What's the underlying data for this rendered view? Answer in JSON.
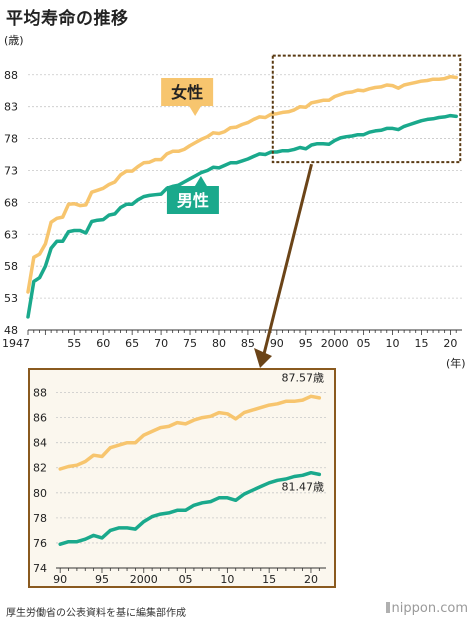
{
  "title": "平均寿命の推移",
  "source": "厚生労働省の公表資料を基に編集部作成",
  "brand": "nippon.com",
  "colors": {
    "female": "#f7c56e",
    "male": "#1aa98c",
    "female_label_bg": "#f7c56e",
    "male_label_bg": "#1aa98c",
    "grid": "#c8c8c8",
    "highlight_frame": "#5a3a12",
    "arrow": "#6b4418",
    "inset_border": "#8a5a1f"
  },
  "chart_data": [
    {
      "type": "line",
      "ylabel": "(歳)",
      "xlabel": "(年)",
      "ylim": [
        48,
        90
      ],
      "xlim": [
        1947,
        2022
      ],
      "y_ticks": [
        48,
        53,
        58,
        63,
        68,
        73,
        78,
        83,
        88
      ],
      "x_ticks": [
        {
          "year": 1947,
          "label": "1947"
        },
        {
          "year": 1955,
          "label": "55"
        },
        {
          "year": 1960,
          "label": "60"
        },
        {
          "year": 1965,
          "label": "65"
        },
        {
          "year": 1970,
          "label": "70"
        },
        {
          "year": 1975,
          "label": "75"
        },
        {
          "year": 1980,
          "label": "80"
        },
        {
          "year": 1985,
          "label": "85"
        },
        {
          "year": 1990,
          "label": "90"
        },
        {
          "year": 1995,
          "label": "95"
        },
        {
          "year": 2000,
          "label": "2000"
        },
        {
          "year": 2005,
          "label": "05"
        },
        {
          "year": 2010,
          "label": "10"
        },
        {
          "year": 2015,
          "label": "15"
        },
        {
          "year": 2020,
          "label": "20"
        }
      ],
      "grid": true,
      "series": [
        {
          "name": "女性",
          "x": [
            1947,
            1948,
            1949,
            1950,
            1951,
            1952,
            1953,
            1954,
            1955,
            1956,
            1957,
            1958,
            1959,
            1960,
            1961,
            1962,
            1963,
            1964,
            1965,
            1966,
            1967,
            1968,
            1969,
            1970,
            1971,
            1972,
            1973,
            1974,
            1975,
            1976,
            1977,
            1978,
            1979,
            1980,
            1981,
            1982,
            1983,
            1984,
            1985,
            1986,
            1987,
            1988,
            1989,
            1990,
            1991,
            1992,
            1993,
            1994,
            1995,
            1996,
            1997,
            1998,
            1999,
            2000,
            2001,
            2002,
            2003,
            2004,
            2005,
            2006,
            2007,
            2008,
            2009,
            2010,
            2011,
            2012,
            2013,
            2014,
            2015,
            2016,
            2017,
            2018,
            2019,
            2020,
            2021
          ],
          "values": [
            53.96,
            59.4,
            59.9,
            61.5,
            64.9,
            65.5,
            65.7,
            67.7,
            67.8,
            67.5,
            67.6,
            69.6,
            69.9,
            70.2,
            70.8,
            71.2,
            72.3,
            72.9,
            72.9,
            73.6,
            74.2,
            74.3,
            74.7,
            74.7,
            75.6,
            76.0,
            76.0,
            76.3,
            76.9,
            77.4,
            77.9,
            78.3,
            78.9,
            78.8,
            79.1,
            79.7,
            79.8,
            80.2,
            80.5,
            81.0,
            81.4,
            81.3,
            81.8,
            81.9,
            82.1,
            82.2,
            82.5,
            83.0,
            82.9,
            83.6,
            83.8,
            84.0,
            84.0,
            84.6,
            84.9,
            85.2,
            85.3,
            85.6,
            85.5,
            85.8,
            86.0,
            86.1,
            86.4,
            86.3,
            85.9,
            86.4,
            86.6,
            86.8,
            87.0,
            87.1,
            87.3,
            87.3,
            87.4,
            87.7,
            87.57
          ]
        },
        {
          "name": "男性",
          "x": [
            1947,
            1948,
            1949,
            1950,
            1951,
            1952,
            1953,
            1954,
            1955,
            1956,
            1957,
            1958,
            1959,
            1960,
            1961,
            1962,
            1963,
            1964,
            1965,
            1966,
            1967,
            1968,
            1969,
            1970,
            1971,
            1972,
            1973,
            1974,
            1975,
            1976,
            1977,
            1978,
            1979,
            1980,
            1981,
            1982,
            1983,
            1984,
            1985,
            1986,
            1987,
            1988,
            1989,
            1990,
            1991,
            1992,
            1993,
            1994,
            1995,
            1996,
            1997,
            1998,
            1999,
            2000,
            2001,
            2002,
            2003,
            2004,
            2005,
            2006,
            2007,
            2008,
            2009,
            2010,
            2011,
            2012,
            2013,
            2014,
            2015,
            2016,
            2017,
            2018,
            2019,
            2020,
            2021
          ],
          "values": [
            50.06,
            55.6,
            56.2,
            58.0,
            60.8,
            61.9,
            61.9,
            63.4,
            63.6,
            63.6,
            63.2,
            65.0,
            65.2,
            65.3,
            66.0,
            66.2,
            67.2,
            67.7,
            67.7,
            68.4,
            68.9,
            69.1,
            69.2,
            69.3,
            70.2,
            70.5,
            70.7,
            71.2,
            71.7,
            72.2,
            72.7,
            73.0,
            73.5,
            73.4,
            73.8,
            74.2,
            74.2,
            74.5,
            74.8,
            75.2,
            75.6,
            75.5,
            75.9,
            75.9,
            76.1,
            76.1,
            76.3,
            76.6,
            76.4,
            77.0,
            77.2,
            77.2,
            77.1,
            77.7,
            78.1,
            78.3,
            78.4,
            78.6,
            78.6,
            79.0,
            79.2,
            79.3,
            79.6,
            79.6,
            79.4,
            79.9,
            80.2,
            80.5,
            80.8,
            81.0,
            81.1,
            81.3,
            81.4,
            81.6,
            81.47
          ]
        }
      ]
    },
    {
      "type": "line",
      "ylim": [
        74,
        89
      ],
      "xlim": [
        1989.5,
        2021.8
      ],
      "y_ticks": [
        74,
        76,
        78,
        80,
        82,
        84,
        86,
        88
      ],
      "x_ticks": [
        {
          "year": 1990,
          "label": "90"
        },
        {
          "year": 1995,
          "label": "95"
        },
        {
          "year": 2000,
          "label": "2000"
        },
        {
          "year": 2005,
          "label": "05"
        },
        {
          "year": 2010,
          "label": "10"
        },
        {
          "year": 2015,
          "label": "15"
        },
        {
          "year": 2020,
          "label": "20"
        }
      ],
      "grid": true,
      "annotations": [
        {
          "series": "女性",
          "text": "87.57歳"
        },
        {
          "series": "男性",
          "text": "81.47歳"
        }
      ],
      "series_range": [
        1990,
        2021
      ]
    }
  ]
}
